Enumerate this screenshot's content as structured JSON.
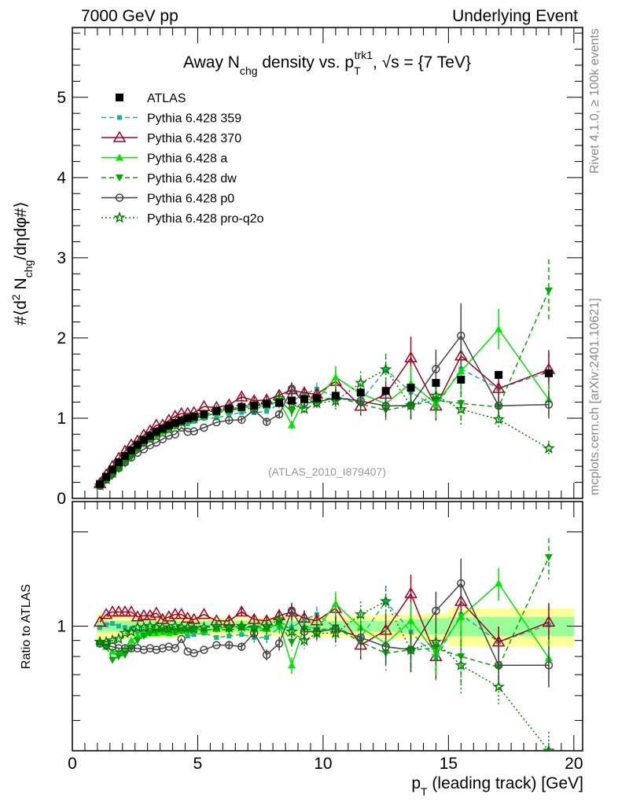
{
  "header": {
    "left": "7000 GeV pp",
    "right": "Underlying Event"
  },
  "side_labels": {
    "rivet": "Rivet 4.1.0, ≥ 100k events",
    "mcplots": "mcplots.cern.ch [arXiv:2401.10621]"
  },
  "watermark": "(ATLAS_2010_I879407)",
  "colors": {
    "ATLAS": "#000000",
    "p359": "#1ab394",
    "p370": "#a50021",
    "pa": "#00e600",
    "pdw": "#00aa00",
    "pp0": "#444444",
    "pq2o": "#008000",
    "band_total": "#ffff99",
    "band_stat": "#99ff99"
  },
  "chart_data": {
    "type": "line",
    "title": {
      "a": "Away N",
      "b": "chg",
      "c": " density vs. p",
      "d": "T",
      "e": "trk1",
      "f": ", √s = {7 TeV}"
    },
    "ylabel": {
      "a": "#⟨d",
      "b": "2",
      "c": " N",
      "d": "chg",
      "e": "/dηdφ#⟩"
    },
    "xlabel": {
      "a": "p",
      "b": "T",
      "c": " (leading track) [GeV]"
    },
    "ratio_ylabel": "Ratio to ATLAS",
    "xlim": [
      0,
      20.35
    ],
    "ylim": [
      0,
      5.87
    ],
    "ratio_ylim": [
      0.4,
      2.5
    ],
    "ratio_scale": "log",
    "xticks": [
      "0",
      "5",
      "10",
      "15",
      "20"
    ],
    "yticks": [
      "0",
      "1",
      "2",
      "3",
      "4",
      "5"
    ],
    "ratio_yticks": [
      "1"
    ],
    "legend_position": "top-left",
    "x": [
      1.1,
      1.35,
      1.6,
      1.85,
      2.1,
      2.35,
      2.6,
      2.85,
      3.1,
      3.35,
      3.6,
      3.85,
      4.1,
      4.35,
      4.6,
      4.85,
      5.25,
      5.75,
      6.25,
      6.75,
      7.25,
      7.75,
      8.25,
      8.75,
      9.25,
      9.75,
      10.5,
      11.5,
      12.5,
      13.5,
      14.5,
      15.5,
      17,
      19
    ],
    "reference": {
      "name": "ATLAS",
      "values": [
        0.18,
        0.27,
        0.36,
        0.45,
        0.53,
        0.6,
        0.67,
        0.73,
        0.78,
        0.83,
        0.87,
        0.91,
        0.94,
        0.97,
        1.0,
        1.02,
        1.05,
        1.09,
        1.12,
        1.14,
        1.16,
        1.18,
        1.19,
        1.22,
        1.24,
        1.25,
        1.28,
        1.32,
        1.34,
        1.38,
        1.44,
        1.48,
        1.54,
        1.56
      ],
      "stat_rel_err": [
        0.04,
        0.04,
        0.04,
        0.04,
        0.04,
        0.04,
        0.04,
        0.04,
        0.04,
        0.04,
        0.04,
        0.04,
        0.04,
        0.04,
        0.04,
        0.04,
        0.04,
        0.04,
        0.04,
        0.04,
        0.04,
        0.04,
        0.04,
        0.04,
        0.04,
        0.04,
        0.04,
        0.04,
        0.04,
        0.05,
        0.06,
        0.07,
        0.07,
        0.07
      ],
      "total_rel_err": [
        0.1,
        0.09,
        0.09,
        0.09,
        0.09,
        0.08,
        0.08,
        0.08,
        0.08,
        0.08,
        0.08,
        0.08,
        0.08,
        0.08,
        0.08,
        0.07,
        0.07,
        0.07,
        0.07,
        0.07,
        0.07,
        0.07,
        0.07,
        0.07,
        0.07,
        0.08,
        0.08,
        0.08,
        0.09,
        0.09,
        0.1,
        0.14,
        0.14,
        0.14
      ]
    },
    "mc_rel_err": [
      0.02,
      0.02,
      0.02,
      0.02,
      0.02,
      0.02,
      0.02,
      0.02,
      0.02,
      0.02,
      0.02,
      0.02,
      0.02,
      0.02,
      0.02,
      0.02,
      0.02,
      0.02,
      0.03,
      0.03,
      0.04,
      0.04,
      0.05,
      0.06,
      0.06,
      0.06,
      0.09,
      0.1,
      0.12,
      0.15,
      0.15,
      0.2,
      0.12,
      0.15
    ],
    "series": [
      {
        "key": "p359",
        "name": "Pythia 6.428 359",
        "marker": "smallsquare",
        "dash": "6,4",
        "ratio": [
          0.99,
          1.01,
          1.02,
          1.0,
          0.99,
          0.98,
          0.96,
          0.96,
          0.95,
          0.96,
          0.95,
          0.95,
          0.95,
          0.96,
          0.93,
          0.94,
          0.95,
          0.92,
          0.93,
          0.94,
          0.92,
          0.92,
          0.99,
          0.99,
          1.05,
          1.09,
          0.99,
          0.92,
          1.2,
          0.96,
          0.79,
          1.09,
          0.89,
          1.01
        ]
      },
      {
        "key": "p370",
        "name": "Pythia 6.428 370",
        "marker": "opentri",
        "dash": "",
        "ratio": [
          1.03,
          1.09,
          1.11,
          1.11,
          1.11,
          1.11,
          1.07,
          1.08,
          1.08,
          1.1,
          1.05,
          1.07,
          1.09,
          1.09,
          1.06,
          1.05,
          1.09,
          1.04,
          1.04,
          1.11,
          1.05,
          1.04,
          1.08,
          1.11,
          1.06,
          1.04,
          1.14,
          0.87,
          0.97,
          1.27,
          0.8,
          1.2,
          0.89,
          1.03
        ]
      },
      {
        "key": "pa",
        "name": "Pythia 6.428 a",
        "marker": "filltri",
        "dash": "",
        "ratio": [
          0.89,
          0.86,
          0.83,
          0.83,
          0.85,
          0.9,
          0.93,
          0.94,
          0.95,
          0.95,
          0.96,
          0.95,
          0.96,
          0.97,
          0.97,
          0.98,
          0.97,
          0.98,
          1.0,
          0.99,
          0.99,
          0.98,
          1.02,
          0.75,
          1.0,
          0.98,
          1.18,
          0.99,
          0.88,
          1.04,
          0.82,
          1.07,
          1.37,
          0.79
        ]
      },
      {
        "key": "pdw",
        "name": "Pythia 6.428 dw",
        "marker": "filltridown",
        "dash": "6,4",
        "ratio": [
          0.88,
          0.86,
          0.78,
          0.8,
          0.81,
          0.85,
          0.9,
          0.93,
          0.95,
          0.96,
          0.97,
          0.97,
          0.96,
          0.97,
          0.97,
          0.98,
          0.97,
          0.98,
          0.97,
          0.99,
          0.96,
          0.98,
          1.02,
          0.89,
          0.98,
          0.97,
          0.99,
          0.89,
          0.82,
          0.84,
          0.85,
          0.8,
          0.74,
          1.66
        ]
      },
      {
        "key": "pp0",
        "name": "Pythia 6.428 p0",
        "marker": "opencircle",
        "dash": "",
        "ratio": [
          0.88,
          0.87,
          0.86,
          0.85,
          0.85,
          0.85,
          0.85,
          0.84,
          0.85,
          0.84,
          0.85,
          0.86,
          0.85,
          0.91,
          0.83,
          0.82,
          0.84,
          0.87,
          0.87,
          0.86,
          0.95,
          0.81,
          0.88,
          1.12,
          0.96,
          0.96,
          0.98,
          0.92,
          0.86,
          0.84,
          1.12,
          1.37,
          0.75,
          0.75
        ]
      },
      {
        "key": "pq2o",
        "name": "Pythia 6.428 pro-q2o",
        "marker": "star",
        "dash": "2,3",
        "ratio": [
          0.89,
          0.89,
          0.9,
          0.91,
          0.95,
          0.96,
          0.99,
          0.99,
          1.0,
          0.99,
          0.99,
          0.98,
          1.0,
          0.99,
          0.99,
          0.98,
          0.99,
          1.0,
          0.99,
          1.0,
          0.99,
          1.0,
          1.05,
          0.96,
          0.9,
          0.95,
          0.95,
          1.09,
          1.2,
          0.84,
          0.89,
          0.75,
          0.64,
          0.4
        ]
      }
    ]
  }
}
